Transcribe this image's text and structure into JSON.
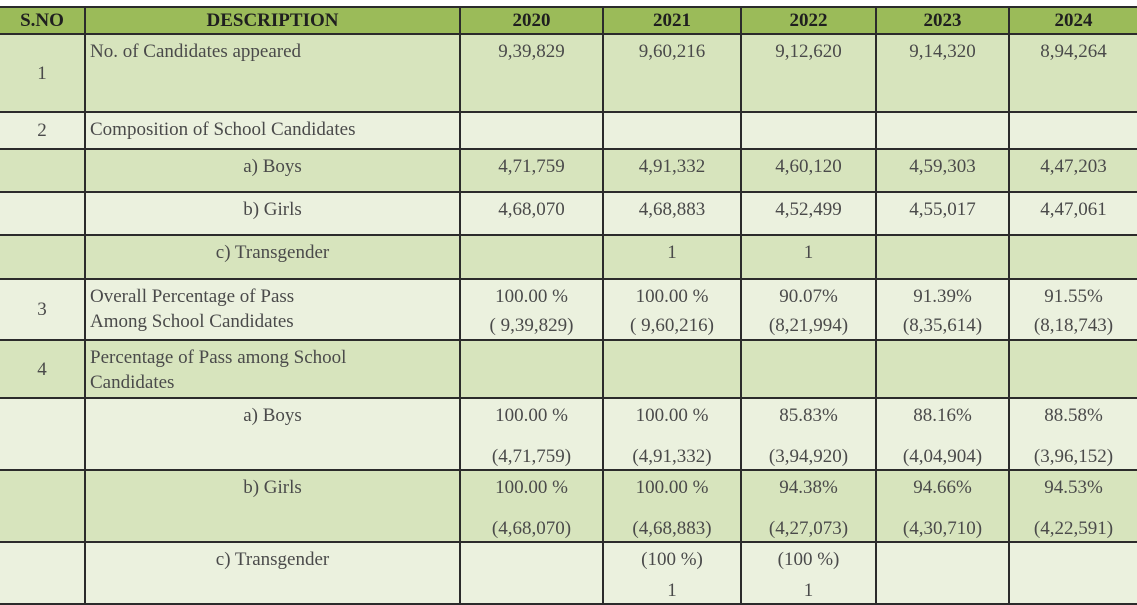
{
  "header": {
    "sno": "S.NO",
    "description": "DESCRIPTION",
    "years": [
      "2020",
      "2021",
      "2022",
      "2023",
      "2024"
    ]
  },
  "rows": [
    {
      "sno": "1",
      "desc": [
        "No. of Candidates appeared"
      ],
      "align": "left",
      "shade": "dark",
      "values": [
        [
          "9,39,829"
        ],
        [
          "9,60,216"
        ],
        [
          "9,12,620"
        ],
        [
          "9,14,320"
        ],
        [
          "8,94,264"
        ]
      ]
    },
    {
      "sno": "2",
      "desc": [
        "Composition of School Candidates"
      ],
      "align": "left",
      "shade": "light",
      "values": [
        [],
        [],
        [],
        [],
        []
      ]
    },
    {
      "sno": "",
      "desc": [
        "a) Boys"
      ],
      "align": "center",
      "shade": "dark",
      "values": [
        [
          "4,71,759"
        ],
        [
          "4,91,332"
        ],
        [
          "4,60,120"
        ],
        [
          "4,59,303"
        ],
        [
          "4,47,203"
        ]
      ]
    },
    {
      "sno": "",
      "desc": [
        "b) Girls"
      ],
      "align": "center",
      "shade": "light",
      "values": [
        [
          "4,68,070"
        ],
        [
          "4,68,883"
        ],
        [
          "4,52,499"
        ],
        [
          "4,55,017"
        ],
        [
          "4,47,061"
        ]
      ]
    },
    {
      "sno": "",
      "desc": [
        "c) Transgender"
      ],
      "align": "center",
      "shade": "dark",
      "values": [
        [],
        [
          "1"
        ],
        [
          "1"
        ],
        [],
        []
      ]
    },
    {
      "sno": "3",
      "desc": [
        "Overall Percentage of Pass",
        "Among School Candidates"
      ],
      "align": "left",
      "shade": "light",
      "values": [
        [
          "100.00 %",
          "( 9,39,829)"
        ],
        [
          "100.00 %",
          "( 9,60,216)"
        ],
        [
          "90.07%",
          "(8,21,994)"
        ],
        [
          "91.39%",
          "(8,35,614)"
        ],
        [
          "91.55%",
          "(8,18,743)"
        ]
      ]
    },
    {
      "sno": "4",
      "desc": [
        "Percentage of Pass among School",
        "Candidates"
      ],
      "align": "left",
      "shade": "dark",
      "values": [
        [],
        [],
        [],
        [],
        []
      ]
    },
    {
      "sno": "",
      "desc": [
        "a) Boys"
      ],
      "align": "center",
      "shade": "light",
      "values": [
        [
          "100.00 %",
          "(4,71,759)"
        ],
        [
          "100.00 %",
          "(4,91,332)"
        ],
        [
          "85.83%",
          "(3,94,920)"
        ],
        [
          "88.16%",
          "(4,04,904)"
        ],
        [
          "88.58%",
          "(3,96,152)"
        ]
      ]
    },
    {
      "sno": "",
      "desc": [
        "b) Girls"
      ],
      "align": "center",
      "shade": "dark",
      "values": [
        [
          "100.00 %",
          "(4,68,070)"
        ],
        [
          "100.00 %",
          "(4,68,883)"
        ],
        [
          "94.38%",
          "(4,27,073)"
        ],
        [
          "94.66%",
          "(4,30,710)"
        ],
        [
          "94.53%",
          "(4,22,591)"
        ]
      ]
    },
    {
      "sno": "",
      "desc": [
        "c) Transgender"
      ],
      "align": "center",
      "shade": "light",
      "values": [
        [],
        [
          "(100 %)",
          "1"
        ],
        [
          "(100 %)",
          "1"
        ],
        [],
        []
      ]
    }
  ],
  "colors": {
    "header": "#9bbb59",
    "dark_row": "#d7e4bd",
    "light_row": "#ebf1de"
  }
}
